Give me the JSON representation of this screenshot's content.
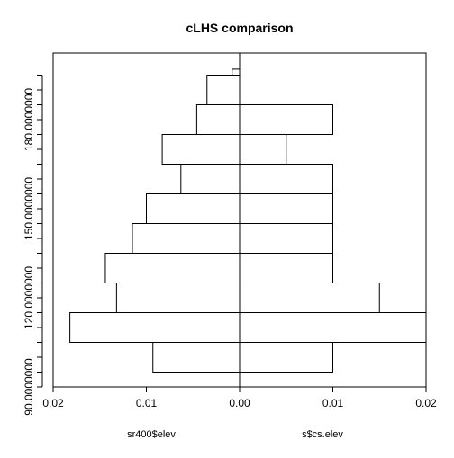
{
  "chart_data": {
    "type": "bar",
    "orientation": "horizontal-back-to-back",
    "title": "cLHS comparison",
    "grid": false,
    "y_range": [
      90,
      200
    ],
    "y_bins": [
      {
        "from": 95,
        "to": 105
      },
      {
        "from": 105,
        "to": 115
      },
      {
        "from": 115,
        "to": 125
      },
      {
        "from": 125,
        "to": 135
      },
      {
        "from": 135,
        "to": 145
      },
      {
        "from": 145,
        "to": 155
      },
      {
        "from": 155,
        "to": 165
      },
      {
        "from": 165,
        "to": 175
      },
      {
        "from": 175,
        "to": 185
      },
      {
        "from": 185,
        "to": 195
      },
      {
        "from": 195,
        "to": 197
      }
    ],
    "y_ticks": [
      90,
      95,
      100,
      105,
      110,
      115,
      120,
      125,
      130,
      135,
      140,
      145,
      150,
      155,
      160,
      165,
      170,
      175,
      180,
      185,
      190,
      195
    ],
    "y_tick_labels": [
      {
        "value": 90,
        "text": "90.0000000"
      },
      {
        "value": 120,
        "text": "120.0000000"
      },
      {
        "value": 150,
        "text": "150.0000000"
      },
      {
        "value": 180,
        "text": "180.0000000"
      }
    ],
    "x_range": [
      -0.02,
      0.02
    ],
    "x_ticks": [
      -0.02,
      -0.01,
      0.0,
      0.01,
      0.02
    ],
    "x_tick_labels": [
      "0.02",
      "0.01",
      "0.00",
      "0.01",
      "0.02"
    ],
    "series": [
      {
        "name": "sr400$elev",
        "side": "left",
        "values": [
          0.0093,
          0.0182,
          0.0132,
          0.0144,
          0.0115,
          0.01,
          0.0063,
          0.0083,
          0.0046,
          0.0035,
          0.0008
        ]
      },
      {
        "name": "s$cs.elev",
        "side": "right",
        "values": [
          0.01,
          0.02,
          0.015,
          0.01,
          0.01,
          0.01,
          0.01,
          0.005,
          0.01,
          0.0,
          0.0
        ]
      }
    ]
  }
}
